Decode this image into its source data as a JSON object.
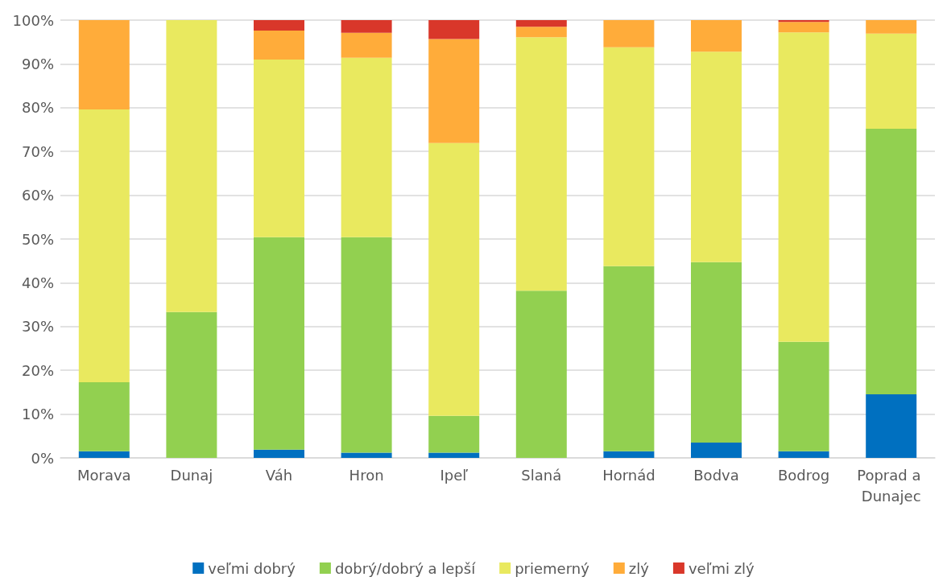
{
  "chart_data": {
    "type": "bar",
    "stacked": true,
    "categories": [
      "Morava",
      "Dunaj",
      "Váh",
      "Hron",
      "Ipeľ",
      "Slaná",
      "Hornád",
      "Bodva",
      "Bodrog",
      "Poprad a Dunajec"
    ],
    "series": [
      {
        "name": "veľmi dobrý",
        "color": "#0070c0",
        "values": [
          1.5,
          0,
          1.9,
          1.2,
          1.2,
          0,
          1.5,
          3.5,
          1.5,
          14.5
        ]
      },
      {
        "name": "dobrý/dobrý a lepší",
        "color": "#92d050",
        "values": [
          15.8,
          33.3,
          48.5,
          49.2,
          8.4,
          38.2,
          42.3,
          41.2,
          25.0,
          60.7
        ]
      },
      {
        "name": "priemerný",
        "color": "#e9e95f",
        "values": [
          62.3,
          66.7,
          40.6,
          41.0,
          62.3,
          57.9,
          50.0,
          48.1,
          70.7,
          21.7
        ]
      },
      {
        "name": "zlý",
        "color": "#ffac3a",
        "values": [
          20.4,
          0,
          6.6,
          5.7,
          23.8,
          2.4,
          6.2,
          7.2,
          2.4,
          3.1
        ]
      },
      {
        "name": "veľmi zlý",
        "color": "#d9372a",
        "values": [
          0,
          0,
          2.4,
          2.9,
          4.3,
          1.5,
          0,
          0,
          0.4,
          0
        ]
      }
    ],
    "ylim": [
      0,
      100
    ],
    "yticks": [
      {
        "value": 0,
        "label": "0%"
      },
      {
        "value": 10,
        "label": "10%"
      },
      {
        "value": 20,
        "label": "20%"
      },
      {
        "value": 30,
        "label": "30%"
      },
      {
        "value": 40,
        "label": "40%"
      },
      {
        "value": 50,
        "label": "50%"
      },
      {
        "value": 60,
        "label": "60%"
      },
      {
        "value": 70,
        "label": "70%"
      },
      {
        "value": 80,
        "label": "80%"
      },
      {
        "value": 90,
        "label": "90%"
      },
      {
        "value": 100,
        "label": "100%"
      }
    ],
    "grid": "y",
    "legend": "bottom"
  }
}
